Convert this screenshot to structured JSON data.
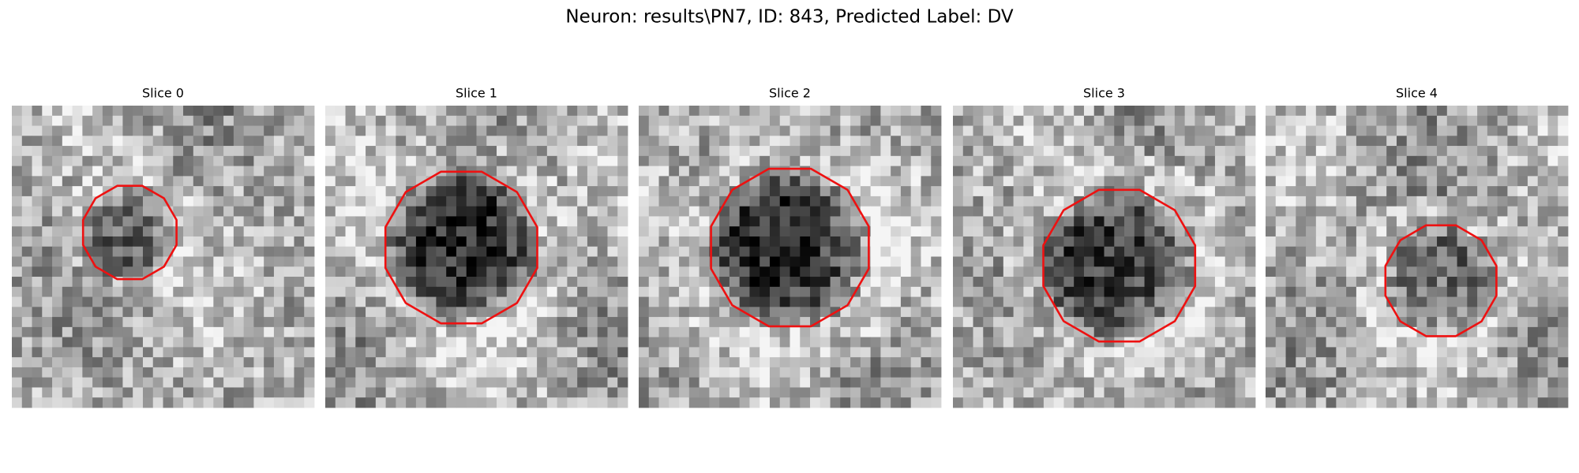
{
  "title": "Neuron: results\\PN7, ID: 843, Predicted Label: DV",
  "panels": [
    {
      "title": "Slice 0"
    },
    {
      "title": "Slice 1"
    },
    {
      "title": "Slice 2"
    },
    {
      "title": "Slice 3"
    },
    {
      "title": "Slice 4"
    }
  ]
}
